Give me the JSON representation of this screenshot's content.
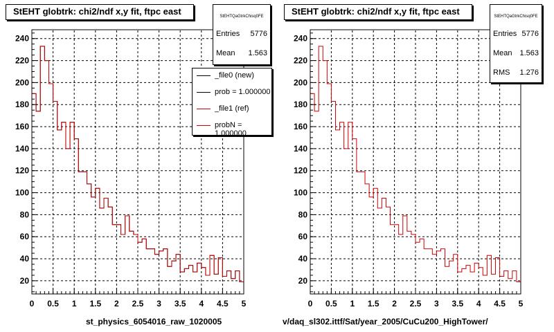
{
  "colors": {
    "new_series": "#000000",
    "ref_series": "#cc0000",
    "grid": "#000000"
  },
  "left_panel": {
    "title": "StEHT globtrk: chi2/ndf x,y fit, ftpc east",
    "stats": {
      "name": "StEHTQaGtrkChisq0FE",
      "rows": [
        {
          "key": "Entries",
          "value": "5776"
        },
        {
          "key": "Mean",
          "value": "1.563"
        }
      ]
    },
    "legend": [
      {
        "label": "_file0 (new)",
        "color": "#000000"
      },
      {
        "label": "prob = 1.000000",
        "color": "#000000"
      },
      {
        "label": "_file1 (ref)",
        "color": "#cc0000"
      },
      {
        "label": "probN = 1.000000",
        "color": "#cc0000"
      }
    ],
    "xtitle": "st_physics_6054016_raw_1020005"
  },
  "right_panel": {
    "title": "StEHT globtrk: chi2/ndf x,y fit, ftpc east",
    "stats": {
      "name": "StEHTQaGtrkChisq0FE",
      "rows": [
        {
          "key": "Entries",
          "value": "5776"
        },
        {
          "key": "Mean",
          "value": "1.563"
        },
        {
          "key": "RMS",
          "value": "1.276"
        }
      ]
    },
    "xtitle": "v/daq_sl302.ittf/Sat/year_2005/CuCu200_HighTower/"
  },
  "chart_data": [
    {
      "type": "histogram",
      "title": "StEHT globtrk: chi2/ndf x,y fit, ftpc east",
      "xlim": [
        0,
        5
      ],
      "ylim": [
        8,
        248
      ],
      "xticks": [
        "0",
        "0.5",
        "1",
        "1.5",
        "2",
        "2.5",
        "3",
        "3.5",
        "4",
        "4.5",
        "5"
      ],
      "yticks": [
        "20",
        "40",
        "60",
        "80",
        "100",
        "120",
        "140",
        "160",
        "180",
        "200",
        "220",
        "240"
      ],
      "grid": true,
      "legend_placement": "top-right",
      "bin_edges_start": 0,
      "bin_width": 0.1,
      "series": [
        {
          "name": "_file0 (new)",
          "color": "#000000",
          "values": [
            190,
            174,
            233,
            220,
            199,
            183,
            157,
            164,
            140,
            164,
            149,
            119,
            119,
            108,
            96,
            104,
            86,
            95,
            87,
            71,
            71,
            62,
            79,
            65,
            62,
            55,
            58,
            49,
            49,
            44,
            47,
            49,
            33,
            38,
            44,
            28,
            31,
            34,
            28,
            36,
            32,
            25,
            43,
            26,
            41,
            24,
            29,
            22,
            29,
            19
          ]
        },
        {
          "name": "_file1 (ref)",
          "color": "#cc0000",
          "values": [
            190,
            174,
            233,
            220,
            199,
            183,
            157,
            164,
            140,
            164,
            149,
            119,
            119,
            108,
            96,
            104,
            86,
            95,
            87,
            71,
            71,
            62,
            79,
            65,
            62,
            55,
            58,
            49,
            49,
            44,
            47,
            49,
            33,
            38,
            44,
            28,
            31,
            34,
            28,
            36,
            32,
            25,
            43,
            26,
            41,
            24,
            29,
            22,
            29,
            19
          ]
        }
      ]
    },
    {
      "type": "histogram",
      "title": "StEHT globtrk: chi2/ndf x,y fit, ftpc east",
      "xlim": [
        0,
        5
      ],
      "ylim": [
        8,
        248
      ],
      "xticks": [
        "0",
        "0.5",
        "1",
        "1.5",
        "2",
        "2.5",
        "3",
        "3.5",
        "4",
        "4.5",
        "5"
      ],
      "yticks": [
        "20",
        "40",
        "60",
        "80",
        "100",
        "120",
        "140",
        "160",
        "180",
        "200",
        "220",
        "240"
      ],
      "grid": true,
      "bin_edges_start": 0,
      "bin_width": 0.1,
      "series": [
        {
          "color": "#cc0000",
          "values": [
            190,
            174,
            233,
            220,
            199,
            183,
            157,
            164,
            140,
            164,
            149,
            119,
            119,
            108,
            96,
            104,
            86,
            95,
            87,
            71,
            71,
            62,
            79,
            65,
            62,
            55,
            58,
            49,
            49,
            44,
            47,
            49,
            33,
            38,
            44,
            28,
            31,
            34,
            28,
            36,
            32,
            25,
            43,
            26,
            41,
            24,
            29,
            22,
            29,
            19
          ]
        }
      ]
    }
  ]
}
